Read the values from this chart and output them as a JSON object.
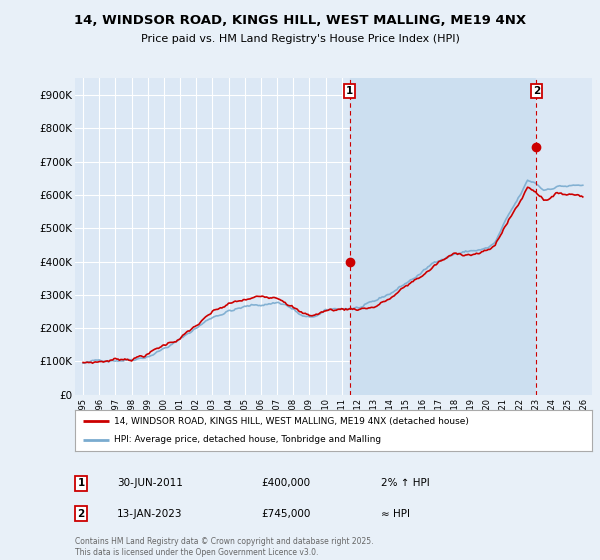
{
  "title": "14, WINDSOR ROAD, KINGS HILL, WEST MALLING, ME19 4NX",
  "subtitle": "Price paid vs. HM Land Registry's House Price Index (HPI)",
  "bg_color": "#e8f0f8",
  "plot_bg_color": "#dce8f5",
  "highlight_color": "#ccdff0",
  "grid_color": "#ffffff",
  "label1": "14, WINDSOR ROAD, KINGS HILL, WEST MALLING, ME19 4NX (detached house)",
  "label2": "HPI: Average price, detached house, Tonbridge and Malling",
  "annotation1_num": "1",
  "annotation1_date": "30-JUN-2011",
  "annotation1_price": "£400,000",
  "annotation1_hpi": "2% ↑ HPI",
  "annotation2_num": "2",
  "annotation2_date": "13-JAN-2023",
  "annotation2_price": "£745,000",
  "annotation2_hpi": "≈ HPI",
  "footer": "Contains HM Land Registry data © Crown copyright and database right 2025.\nThis data is licensed under the Open Government Licence v3.0.",
  "line1_color": "#cc0000",
  "line2_color": "#7aabcf",
  "marker1_x": 2011.5,
  "marker2_x": 2023.04,
  "marker1_y": 400000,
  "marker2_y": 745000,
  "vline1_x": 2011.5,
  "vline2_x": 2023.04,
  "ylim": [
    0,
    950000
  ],
  "xlim": [
    1994.5,
    2026.5
  ],
  "yticks": [
    0,
    100000,
    200000,
    300000,
    400000,
    500000,
    600000,
    700000,
    800000,
    900000
  ],
  "ytick_labels": [
    "£0",
    "£100K",
    "£200K",
    "£300K",
    "£400K",
    "£500K",
    "£600K",
    "£700K",
    "£800K",
    "£900K"
  ],
  "xtick_values": [
    1995,
    1996,
    1997,
    1998,
    1999,
    2000,
    2001,
    2002,
    2003,
    2004,
    2005,
    2006,
    2007,
    2008,
    2009,
    2010,
    2011,
    2012,
    2013,
    2014,
    2015,
    2016,
    2017,
    2018,
    2019,
    2020,
    2021,
    2022,
    2023,
    2024,
    2025,
    2026
  ],
  "xtick_labels": [
    "1995",
    "1996",
    "1997",
    "1998",
    "1999",
    "2000",
    "2001",
    "2002",
    "2003",
    "2004",
    "2005",
    "2006",
    "2007",
    "2008",
    "2009",
    "2010",
    "2011",
    "2012",
    "2013",
    "2014",
    "2015",
    "2016",
    "2017",
    "2018",
    "2019",
    "2020",
    "2021",
    "2022",
    "2023",
    "2024",
    "2025",
    "2026"
  ]
}
